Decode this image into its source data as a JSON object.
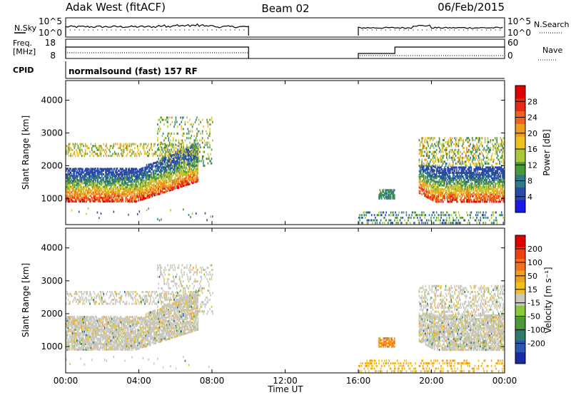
{
  "header": {
    "station": "Adak West (fitACF)",
    "beam": "Beam 02",
    "date": "06/Feb/2015"
  },
  "noise_panel": {
    "left_label": "N.Sky",
    "right_label": "N.Search",
    "left_ticks": [
      "10^5",
      "10^0"
    ],
    "right_ticks": [
      "10^5",
      "10^0"
    ]
  },
  "freq_panel": {
    "left_label_line1": "Freq.",
    "left_label_line2": "[MHz]",
    "right_label": "Nave",
    "left_ticks": [
      "18",
      "8"
    ],
    "right_ticks": [
      "60",
      "0"
    ]
  },
  "cpid_panel": {
    "label": "CPID",
    "text": "normalsound (fast) 157 RF"
  },
  "time_axis": {
    "label": "Time UT",
    "ticks": [
      "00:00",
      "04:00",
      "08:00",
      "12:00",
      "16:00",
      "20:00",
      "00:00"
    ]
  },
  "chart_data": [
    {
      "type": "heatmap",
      "name": "power",
      "ylabel": "Slant Range [km]",
      "yticks": [
        "1000",
        "2000",
        "3000",
        "4000"
      ],
      "ylim": [
        200,
        4600
      ],
      "xlim_hours": [
        0,
        24
      ],
      "colorbar": {
        "label": "Power [dB]",
        "ticks": [
          "4",
          "8",
          "12",
          "16",
          "20",
          "24",
          "28"
        ],
        "colors": [
          "#1a1ae6",
          "#2a4aa6",
          "#2f7a8a",
          "#4a9a3a",
          "#a8c83a",
          "#f0c020",
          "#f09a20",
          "#f06020",
          "#e82818",
          "#e00000"
        ]
      }
    },
    {
      "type": "heatmap",
      "name": "velocity",
      "ylabel": "Slant Range [km]",
      "yticks": [
        "1000",
        "2000",
        "3000",
        "4000"
      ],
      "ylim": [
        200,
        4600
      ],
      "xlim_hours": [
        0,
        24
      ],
      "colorbar": {
        "label": "Velocity [m s⁻¹]",
        "ticks": [
          "200",
          "100",
          "50",
          "15",
          "-15",
          "-50",
          "-100",
          "-200"
        ],
        "colors": [
          "#1a2aa0",
          "#2a55b0",
          "#2f7a6a",
          "#4a9a3a",
          "#88c83a",
          "#c8c8be",
          "#f0c020",
          "#f0a020",
          "#f07020",
          "#f04010",
          "#e00000"
        ]
      }
    }
  ]
}
